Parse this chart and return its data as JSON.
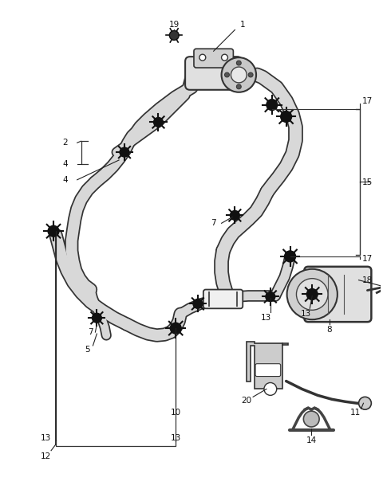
{
  "background_color": "#ffffff",
  "line_color": "#222222",
  "fig_width": 4.8,
  "fig_height": 6.24,
  "dpi": 100,
  "hose_fill": "#d8d8d8",
  "hose_edge": "#333333",
  "label_fs": 7.5
}
